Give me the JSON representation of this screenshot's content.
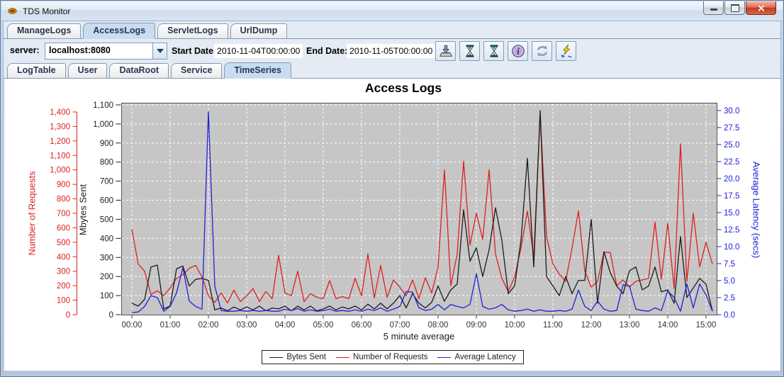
{
  "window": {
    "title": "TDS Monitor",
    "controls": [
      "minimize",
      "maximize",
      "close"
    ]
  },
  "tabs_main": {
    "items": [
      "ManageLogs",
      "AccessLogs",
      "ServletLogs",
      "UrlDump"
    ],
    "selected": "AccessLogs",
    "selected_index": 1
  },
  "toolbar": {
    "server_label": "server:",
    "server_value": "localhost:8080",
    "start_date_label": "Start Date:",
    "start_date_value": "2010-11-04T00:00:00",
    "end_date_label": "End Date:",
    "end_date_value": "2010-11-05T00:00:00",
    "buttons": [
      {
        "name": "save-button",
        "icon": "download-icon"
      },
      {
        "name": "hourglass-start-button",
        "icon": "hourglass-icon"
      },
      {
        "name": "hourglass-stop-button",
        "icon": "hourglass-icon"
      },
      {
        "name": "info-button",
        "icon": "info-icon"
      },
      {
        "name": "refresh-button",
        "icon": "refresh-icon"
      },
      {
        "name": "execute-button",
        "icon": "lightning-icon"
      }
    ]
  },
  "tabs_sub": {
    "items": [
      "LogTable",
      "User",
      "DataRoot",
      "Service",
      "TimeSeries"
    ],
    "selected": "TimeSeries",
    "selected_index": 4
  },
  "chart_data": {
    "type": "line",
    "title": "Access Logs",
    "xlabel": "5 minute average",
    "step_minutes": 10,
    "x_ticks": [
      "00:00",
      "01:00",
      "02:00",
      "03:00",
      "04:00",
      "05:00",
      "06:00",
      "07:00",
      "08:00",
      "09:00",
      "10:00",
      "11:00",
      "12:00",
      "13:00",
      "14:00",
      "15:00"
    ],
    "axes": {
      "requests": {
        "label": "Number of Requests",
        "color": "#e01f1f",
        "min": 0,
        "max": 1400,
        "ticks": [
          "0",
          "100",
          "200",
          "300",
          "400",
          "500",
          "600",
          "700",
          "800",
          "900",
          "1,000",
          "1,100",
          "1,200",
          "1,300",
          "1,400"
        ]
      },
      "mbytes": {
        "label": "Mbytes Sent",
        "color": "#1c1c1c",
        "min": 0,
        "max": 1100,
        "ticks": [
          "0",
          "100",
          "200",
          "300",
          "400",
          "500",
          "600",
          "700",
          "800",
          "900",
          "1,000",
          "1,100"
        ]
      },
      "latency": {
        "label": "Average Latency (secs)",
        "color": "#2020d8",
        "min": 0,
        "max": 30,
        "ticks": [
          "0.0",
          "2.5",
          "5.0",
          "7.5",
          "10.0",
          "12.5",
          "15.0",
          "17.5",
          "20.0",
          "22.5",
          "25.0",
          "27.5",
          "30.0"
        ]
      }
    },
    "grid": {
      "plot_bg": "#c6c6c6",
      "grid_color": "#ffffff",
      "grid_dashed": true,
      "border_color": "#545454"
    },
    "legend": {
      "position": "bottom",
      "items": [
        "Bytes Sent",
        "Number of Requests",
        "Average Latency"
      ]
    },
    "series": [
      {
        "name": "Bytes Sent",
        "axis": "mbytes",
        "color": "#1c1c1c",
        "values": [
          60,
          45,
          80,
          250,
          260,
          30,
          45,
          240,
          255,
          150,
          185,
          190,
          180,
          25,
          35,
          20,
          40,
          25,
          40,
          25,
          45,
          20,
          35,
          30,
          45,
          20,
          45,
          25,
          45,
          20,
          30,
          45,
          25,
          40,
          30,
          45,
          25,
          55,
          30,
          60,
          30,
          60,
          100,
          35,
          110,
          60,
          35,
          65,
          150,
          70,
          130,
          160,
          550,
          280,
          350,
          200,
          340,
          560,
          390,
          110,
          150,
          390,
          820,
          250,
          1070,
          200,
          150,
          100,
          200,
          110,
          180,
          180,
          500,
          60,
          330,
          220,
          150,
          110,
          230,
          250,
          130,
          150,
          250,
          120,
          130,
          60,
          410,
          90,
          140,
          190,
          160,
          20
        ]
      },
      {
        "name": "Number of Requests",
        "axis": "requests",
        "color": "#e01f1f",
        "values": [
          590,
          350,
          300,
          140,
          165,
          130,
          185,
          250,
          275,
          320,
          340,
          260,
          130,
          85,
          150,
          80,
          170,
          90,
          130,
          180,
          90,
          160,
          110,
          410,
          150,
          130,
          300,
          90,
          145,
          120,
          110,
          235,
          110,
          125,
          110,
          250,
          130,
          420,
          115,
          340,
          120,
          240,
          190,
          130,
          240,
          110,
          255,
          150,
          330,
          1000,
          200,
          420,
          1060,
          480,
          700,
          520,
          1000,
          420,
          250,
          160,
          260,
          460,
          715,
          400,
          1390,
          540,
          350,
          280,
          230,
          460,
          715,
          300,
          190,
          230,
          430,
          430,
          200,
          240,
          190,
          230,
          240,
          250,
          640,
          245,
          630,
          180,
          1180,
          230,
          700,
          330,
          500,
          350
        ]
      },
      {
        "name": "Average Latency",
        "axis": "latency",
        "color": "#2020d8",
        "values": [
          0.3,
          0.4,
          1.2,
          2.8,
          2.5,
          0.5,
          1.2,
          3.2,
          6.9,
          2.0,
          1.2,
          0.8,
          29.8,
          4.2,
          0.6,
          0.5,
          0.5,
          0.6,
          0.5,
          0.6,
          0.5,
          0.6,
          0.5,
          0.5,
          0.8,
          0.6,
          0.9,
          0.5,
          0.7,
          0.5,
          0.6,
          0.8,
          0.5,
          0.6,
          0.5,
          0.7,
          0.5,
          0.8,
          0.6,
          1.0,
          0.5,
          0.8,
          1.2,
          3.4,
          3.3,
          1.0,
          0.6,
          0.8,
          1.5,
          0.7,
          1.5,
          1.2,
          1.0,
          1.5,
          6.0,
          1.2,
          0.8,
          1.0,
          1.5,
          0.7,
          0.5,
          0.6,
          0.8,
          0.5,
          0.7,
          0.5,
          0.5,
          0.6,
          0.5,
          0.8,
          3.6,
          1.2,
          0.6,
          2.0,
          0.8,
          0.5,
          0.6,
          4.4,
          4.2,
          0.8,
          0.6,
          0.5,
          1.0,
          0.6,
          3.5,
          2.5,
          0.5,
          4.5,
          1.0,
          4.5,
          2.9,
          0.5
        ]
      }
    ]
  }
}
